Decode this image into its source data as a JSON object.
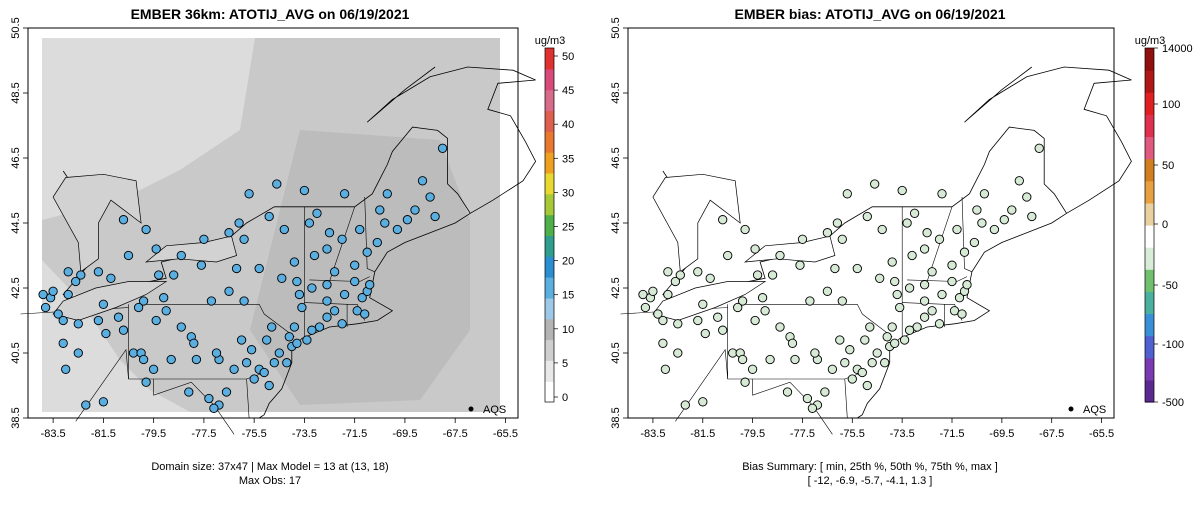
{
  "panels": [
    {
      "title": "EMBER 36km: ATOTIJ_AVG on 06/19/2021",
      "units": "ug/m3",
      "colorbar_ticks": [
        "0",
        "5",
        "10",
        "15",
        "20",
        "25",
        "30",
        "35",
        "40",
        "45",
        "50"
      ],
      "legend_label": "AQS",
      "caption_lines": [
        "Domain size: 37x47 | Max Model = 13 at (13, 18)",
        "Max Obs: 17"
      ],
      "point_color": "#5aaee0",
      "background_color": "#dcdcdc"
    },
    {
      "title": "EMBER bias: ATOTIJ_AVG on 06/19/2021",
      "units": "ug/m3",
      "colorbar_ticks": [
        "-500",
        "-100",
        "-50",
        "0",
        "50",
        "100",
        "14000"
      ],
      "legend_label": "AQS",
      "caption_lines": [
        "Bias Summary: [ min, 25th %, 50th %, 75th %, max ]",
        "[ -12,   -6.9,   -5.7,   -4.1,   1.3 ]"
      ],
      "point_color": "#d6ead6",
      "background_color": "#ffffff"
    }
  ],
  "chart_data": {
    "type": "map-scatter",
    "x_ticks": [
      "-83.5",
      "-81.5",
      "-79.5",
      "-77.5",
      "-75.5",
      "-73.5",
      "-71.5",
      "-69.5",
      "-67.5",
      "-65.5"
    ],
    "y_ticks": [
      "38.5",
      "40.5",
      "42.5",
      "44.5",
      "46.5",
      "48.5",
      "50.5"
    ],
    "xlim": [
      -84.5,
      -65
    ],
    "ylim": [
      38.5,
      50.5
    ],
    "stations": [
      [
        -83.9,
        42.3
      ],
      [
        -83.6,
        42.2
      ],
      [
        -83.5,
        42.4
      ],
      [
        -83.8,
        41.9
      ],
      [
        -82.9,
        42.3
      ],
      [
        -82.6,
        42.7
      ],
      [
        -83.3,
        41.7
      ],
      [
        -83.1,
        41.5
      ],
      [
        -82.5,
        41.4
      ],
      [
        -81.7,
        41.5
      ],
      [
        -81.4,
        41.1
      ],
      [
        -81.5,
        42.0
      ],
      [
        -80.3,
        40.5
      ],
      [
        -80.0,
        40.5
      ],
      [
        -79.9,
        40.3
      ],
      [
        -80.7,
        41.2
      ],
      [
        -80.9,
        41.6
      ],
      [
        -79.4,
        41.5
      ],
      [
        -79.0,
        41.8
      ],
      [
        -78.4,
        41.3
      ],
      [
        -78.0,
        41.0
      ],
      [
        -77.9,
        40.8
      ],
      [
        -76.9,
        40.3
      ],
      [
        -76.3,
        40.0
      ],
      [
        -75.8,
        40.2
      ],
      [
        -75.3,
        40.0
      ],
      [
        -75.1,
        39.9
      ],
      [
        -74.9,
        39.5
      ],
      [
        -75.5,
        39.7
      ],
      [
        -76.6,
        39.3
      ],
      [
        -76.9,
        38.9
      ],
      [
        -77.3,
        39.1
      ],
      [
        -78.1,
        39.3
      ],
      [
        -77.6,
        38.5
      ],
      [
        -77.1,
        38.8
      ],
      [
        -79.8,
        39.6
      ],
      [
        -81.3,
        38.4
      ],
      [
        -82.2,
        38.9
      ],
      [
        -82.6,
        38.4
      ],
      [
        -83.0,
        40.0
      ],
      [
        -82.5,
        40.5
      ],
      [
        -81.5,
        39.0
      ],
      [
        -79.9,
        42.1
      ],
      [
        -79.3,
        42.9
      ],
      [
        -78.7,
        42.9
      ],
      [
        -77.6,
        43.2
      ],
      [
        -76.2,
        43.1
      ],
      [
        -75.3,
        43.1
      ],
      [
        -74.4,
        42.8
      ],
      [
        -73.8,
        42.7
      ],
      [
        -73.7,
        42.3
      ],
      [
        -73.6,
        41.9
      ],
      [
        -73.9,
        41.3
      ],
      [
        -74.1,
        41.0
      ],
      [
        -74.0,
        40.7
      ],
      [
        -73.8,
        40.8
      ],
      [
        -73.4,
        40.9
      ],
      [
        -72.9,
        41.3
      ],
      [
        -72.6,
        41.6
      ],
      [
        -72.3,
        41.8
      ],
      [
        -71.4,
        41.8
      ],
      [
        -71.2,
        42.2
      ],
      [
        -71.0,
        42.4
      ],
      [
        -71.9,
        42.3
      ],
      [
        -72.6,
        42.1
      ],
      [
        -73.2,
        42.5
      ],
      [
        -73.1,
        43.5
      ],
      [
        -72.5,
        44.2
      ],
      [
        -73.3,
        44.5
      ],
      [
        -74.9,
        44.7
      ],
      [
        -74.3,
        44.3
      ],
      [
        -75.9,
        44.0
      ],
      [
        -73.9,
        43.3
      ],
      [
        -72.3,
        43.0
      ],
      [
        -71.5,
        43.2
      ],
      [
        -71.0,
        43.6
      ],
      [
        -70.6,
        43.9
      ],
      [
        -70.3,
        44.5
      ],
      [
        -69.8,
        44.3
      ],
      [
        -69.1,
        44.9
      ],
      [
        -68.3,
        44.7
      ],
      [
        -68.8,
        45.8
      ],
      [
        -68.0,
        46.8
      ],
      [
        -70.2,
        45.4
      ],
      [
        -71.3,
        44.3
      ],
      [
        -73.5,
        45.5
      ],
      [
        -71.9,
        45.4
      ],
      [
        -74.6,
        45.7
      ],
      [
        -75.7,
        45.4
      ],
      [
        -76.5,
        44.2
      ],
      [
        -79.4,
        43.7
      ],
      [
        -80.5,
        43.5
      ],
      [
        -79.8,
        44.3
      ],
      [
        -80.7,
        44.6
      ],
      [
        -81.7,
        43.0
      ],
      [
        -82.4,
        42.9
      ],
      [
        -77.2,
        42.1
      ],
      [
        -76.5,
        42.4
      ],
      [
        -75.9,
        42.1
      ],
      [
        -74.7,
        40.2
      ],
      [
        -74.5,
        40.5
      ],
      [
        -74.2,
        40.2
      ],
      [
        -75.6,
        40.6
      ],
      [
        -76.0,
        40.9
      ],
      [
        -77.8,
        40.3
      ],
      [
        -78.8,
        40.3
      ],
      [
        -79.5,
        40.0
      ],
      [
        -77.0,
        40.5
      ],
      [
        -75.0,
        40.9
      ],
      [
        -74.8,
        41.3
      ],
      [
        -73.2,
        41.2
      ],
      [
        -72.0,
        41.4
      ],
      [
        -71.1,
        41.7
      ],
      [
        -70.9,
        42.6
      ],
      [
        -71.5,
        42.7
      ],
      [
        -72.6,
        42.6
      ],
      [
        -72.0,
        44.0
      ],
      [
        -70.5,
        44.9
      ],
      [
        -69.4,
        44.6
      ],
      [
        -68.5,
        45.3
      ],
      [
        -73.0,
        44.8
      ],
      [
        -72.6,
        43.7
      ],
      [
        -76.1,
        44.5
      ],
      [
        -77.5,
        44.0
      ],
      [
        -78.4,
        43.5
      ],
      [
        -81.2,
        42.8
      ],
      [
        -82.9,
        43.0
      ],
      [
        -83.1,
        40.8
      ],
      [
        -80.1,
        41.9
      ],
      [
        -79.1,
        42.2
      ]
    ]
  }
}
